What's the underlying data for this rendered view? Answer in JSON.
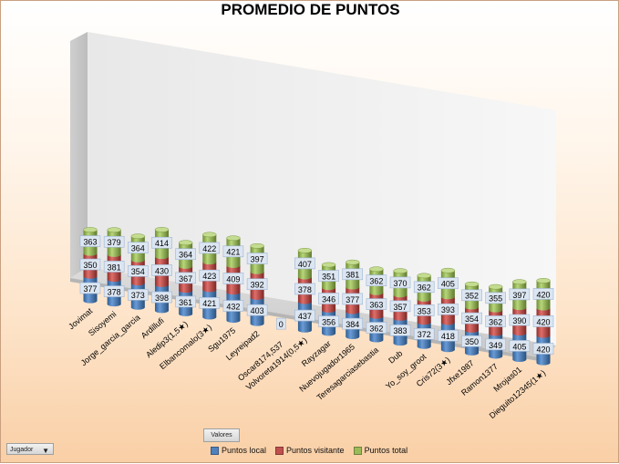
{
  "chart_data": {
    "type": "bar",
    "stacked": true,
    "style": "3d-cylinder",
    "title": "PROMEDIO DE PUNTOS",
    "categories": [
      "Jovimat",
      "Sisoyemi",
      "Jorge_garcia_garcia",
      "Ardillufi",
      "Aledip3(1,5★)",
      "Elbancomalo(3★)",
      "Sgu1975",
      "Leyreipad2",
      "Oscar8174,537",
      "Volvoreta1914(0,5★)",
      "Rayzagar",
      "Nuevojugador1965",
      "Teresagarciasebastia",
      "Dub",
      "Yo_soy_groot",
      "Cris72(3★)",
      "Jfxe1987",
      "Ramon1377",
      "Mrojas01",
      "Dieguito12345(1★)"
    ],
    "series": [
      {
        "name": "Puntos local",
        "color": "#4F81BD",
        "values": [
          377,
          378,
          373,
          398,
          361,
          421,
          432,
          403,
          0,
          437,
          356,
          384,
          362,
          383,
          372,
          418,
          350,
          349,
          405,
          420
        ]
      },
      {
        "name": "Puntos visitante",
        "color": "#C0504D",
        "values": [
          350,
          381,
          354,
          430,
          367,
          423,
          409,
          392,
          0,
          378,
          346,
          377,
          363,
          357,
          353,
          393,
          354,
          362,
          390,
          420
        ]
      },
      {
        "name": "Puntos total",
        "color": "#9BBB59",
        "values": [
          363,
          379,
          364,
          414,
          364,
          422,
          421,
          397,
          0,
          407,
          351,
          381,
          362,
          370,
          362,
          405,
          352,
          355,
          397,
          420
        ]
      }
    ],
    "data_labels": [
      [
        "377",
        "350",
        "363"
      ],
      [
        "378",
        "381",
        "379"
      ],
      [
        "373",
        "354",
        "364"
      ],
      [
        "398",
        "430",
        "414"
      ],
      [
        "361",
        "367",
        "364"
      ],
      [
        "421",
        "423",
        "422"
      ],
      [
        "432",
        "409",
        "421"
      ],
      [
        "403",
        "392",
        "397"
      ],
      [
        "0"
      ],
      [
        "437",
        "378",
        "407"
      ],
      [
        "356",
        "346",
        "351"
      ],
      [
        "384",
        "377",
        "381"
      ],
      [
        "362",
        "363",
        "362"
      ],
      [
        "383",
        "357",
        "370"
      ],
      [
        "372",
        "353",
        "362"
      ],
      [
        "418",
        "393",
        "405"
      ],
      [
        "350",
        "354",
        "352"
      ],
      [
        "349",
        "362",
        "355"
      ],
      [
        "405",
        "390",
        "397"
      ],
      [
        "420",
        "420",
        "420"
      ]
    ],
    "legend_position": "bottom",
    "grid": false
  },
  "ui": {
    "values_field": "Valores",
    "jugador_field": "Jugador",
    "dropdown_glyph": "▼"
  }
}
